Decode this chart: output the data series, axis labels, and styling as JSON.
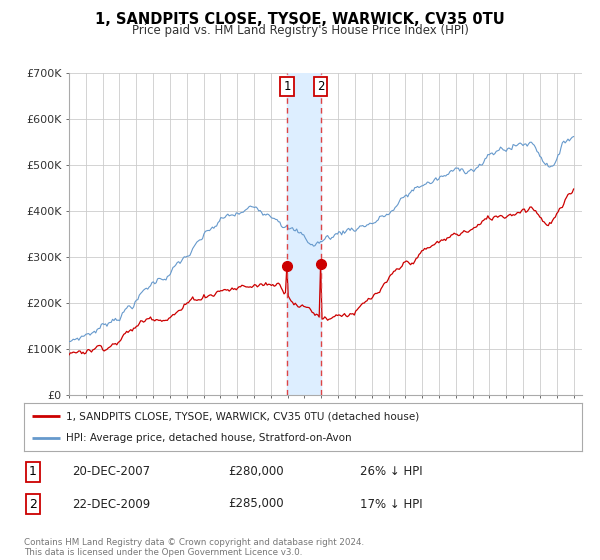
{
  "title": "1, SANDPITS CLOSE, TYSOE, WARWICK, CV35 0TU",
  "subtitle": "Price paid vs. HM Land Registry's House Price Index (HPI)",
  "legend_entry1": "1, SANDPITS CLOSE, TYSOE, WARWICK, CV35 0TU (detached house)",
  "legend_entry2": "HPI: Average price, detached house, Stratford-on-Avon",
  "transaction1_label": "1",
  "transaction1_date": "20-DEC-2007",
  "transaction1_price": "£280,000",
  "transaction1_hpi": "26% ↓ HPI",
  "transaction2_label": "2",
  "transaction2_date": "22-DEC-2009",
  "transaction2_price": "£285,000",
  "transaction2_hpi": "17% ↓ HPI",
  "footer": "Contains HM Land Registry data © Crown copyright and database right 2024.\nThis data is licensed under the Open Government Licence v3.0.",
  "sale_color": "#cc0000",
  "hpi_color": "#6699cc",
  "shade_color": "#ddeeff",
  "vline_color": "#dd4444",
  "ylim": [
    0,
    700000
  ],
  "yticks": [
    0,
    100000,
    200000,
    300000,
    400000,
    500000,
    600000,
    700000
  ],
  "ytick_labels": [
    "£0",
    "£100K",
    "£200K",
    "£300K",
    "£400K",
    "£500K",
    "£600K",
    "£700K"
  ],
  "xmin": 1995.0,
  "xmax": 2025.5,
  "transaction1_x": 2007.97,
  "transaction2_x": 2009.97,
  "transaction1_y": 280000,
  "transaction2_y": 285000,
  "background_color": "#ffffff",
  "grid_color": "#cccccc"
}
